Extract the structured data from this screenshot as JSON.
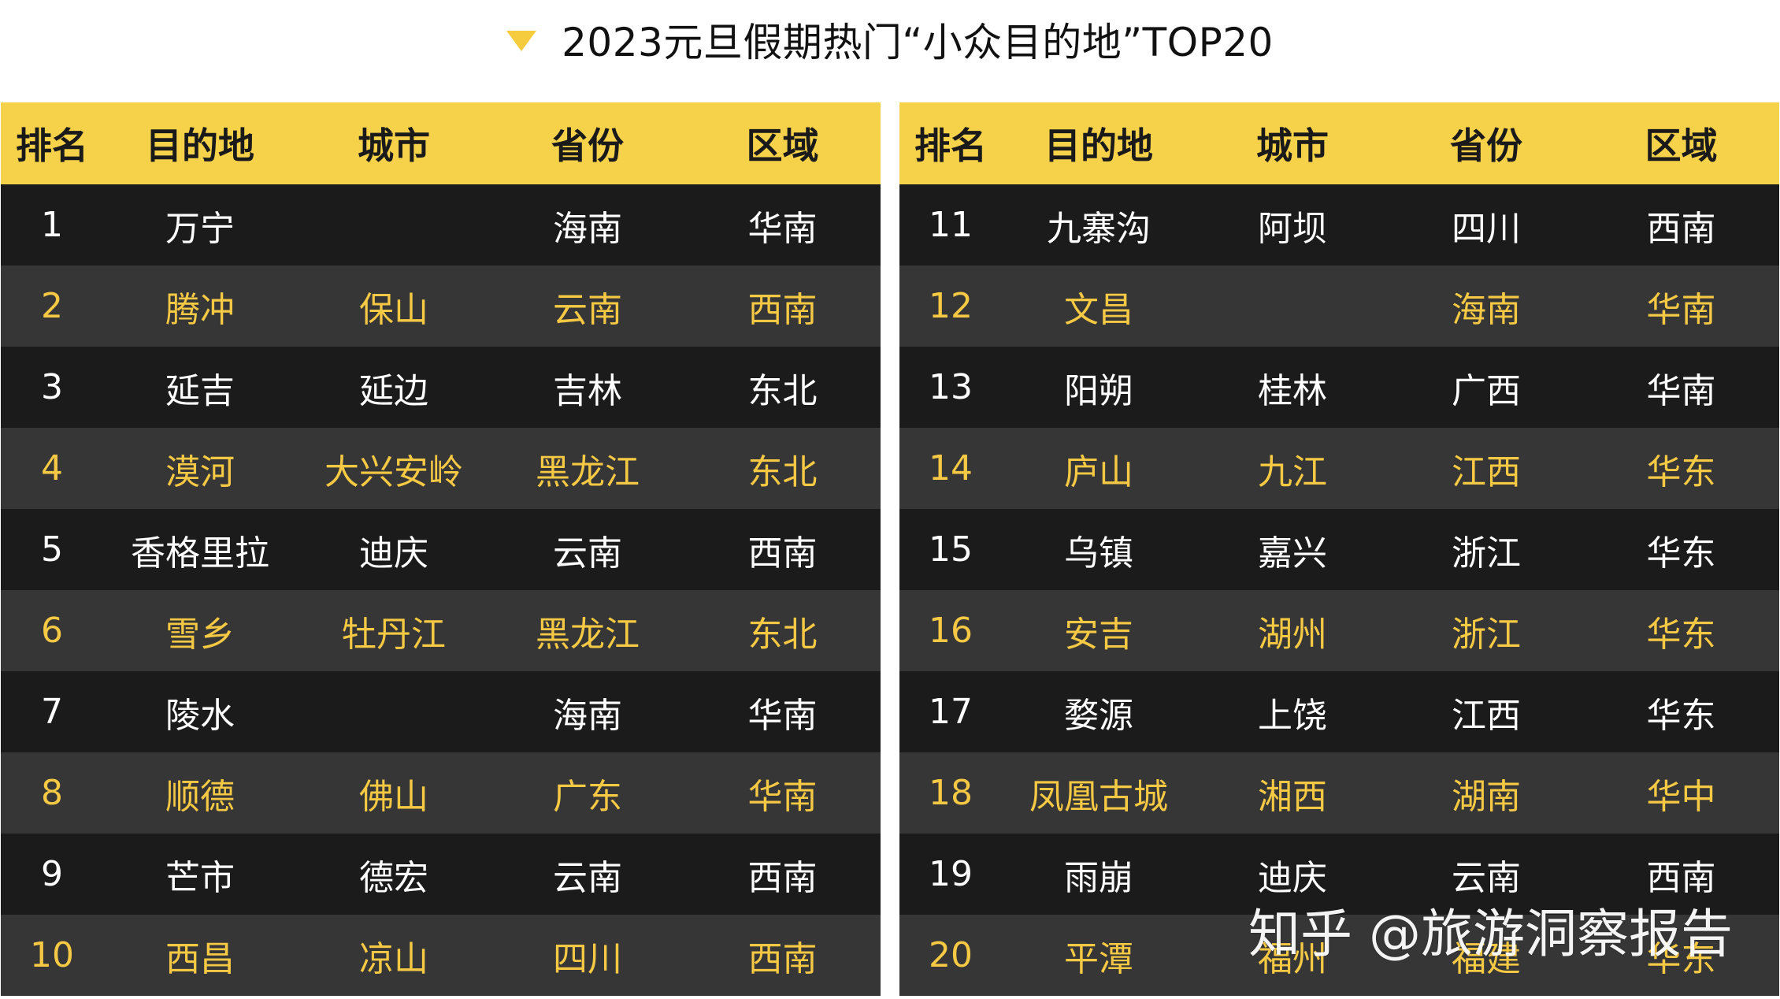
{
  "title": "2023元旦假期热门“小众目的地”TOP20",
  "colors": {
    "header_bg": "#f6d24a",
    "row_dark": "#1b1b1b",
    "row_light": "#363636",
    "text_white": "#ffffff",
    "text_yellow": "#f6c945",
    "triangle": "#f6cc3f"
  },
  "headers": [
    "排名",
    "目的地",
    "城市",
    "省份",
    "区域"
  ],
  "left_table": [
    {
      "rank": "1",
      "destination": "万宁",
      "city": "",
      "province": "海南",
      "region": "华南"
    },
    {
      "rank": "2",
      "destination": "腾冲",
      "city": "保山",
      "province": "云南",
      "region": "西南"
    },
    {
      "rank": "3",
      "destination": "延吉",
      "city": "延边",
      "province": "吉林",
      "region": "东北"
    },
    {
      "rank": "4",
      "destination": "漠河",
      "city": "大兴安岭",
      "province": "黑龙江",
      "region": "东北"
    },
    {
      "rank": "5",
      "destination": "香格里拉",
      "city": "迪庆",
      "province": "云南",
      "region": "西南"
    },
    {
      "rank": "6",
      "destination": "雪乡",
      "city": "牡丹江",
      "province": "黑龙江",
      "region": "东北"
    },
    {
      "rank": "7",
      "destination": "陵水",
      "city": "",
      "province": "海南",
      "region": "华南"
    },
    {
      "rank": "8",
      "destination": "顺德",
      "city": "佛山",
      "province": "广东",
      "region": "华南"
    },
    {
      "rank": "9",
      "destination": "芒市",
      "city": "德宏",
      "province": "云南",
      "region": "西南"
    },
    {
      "rank": "10",
      "destination": "西昌",
      "city": "凉山",
      "province": "四川",
      "region": "西南"
    }
  ],
  "right_table": [
    {
      "rank": "11",
      "destination": "九寨沟",
      "city": "阿坝",
      "province": "四川",
      "region": "西南"
    },
    {
      "rank": "12",
      "destination": "文昌",
      "city": "",
      "province": "海南",
      "region": "华南"
    },
    {
      "rank": "13",
      "destination": "阳朔",
      "city": "桂林",
      "province": "广西",
      "region": "华南"
    },
    {
      "rank": "14",
      "destination": "庐山",
      "city": "九江",
      "province": "江西",
      "region": "华东"
    },
    {
      "rank": "15",
      "destination": "乌镇",
      "city": "嘉兴",
      "province": "浙江",
      "region": "华东"
    },
    {
      "rank": "16",
      "destination": "安吉",
      "city": "湖州",
      "province": "浙江",
      "region": "华东"
    },
    {
      "rank": "17",
      "destination": "婺源",
      "city": "上饶",
      "province": "江西",
      "region": "华东"
    },
    {
      "rank": "18",
      "destination": "凤凰古城",
      "city": "湘西",
      "province": "湖南",
      "region": "华中"
    },
    {
      "rank": "19",
      "destination": "雨崩",
      "city": "迪庆",
      "province": "云南",
      "region": "西南"
    },
    {
      "rank": "20",
      "destination": "平潭",
      "city": "福州",
      "province": "福建",
      "region": "华东"
    }
  ],
  "watermark": "知乎 @旅游洞察报告"
}
